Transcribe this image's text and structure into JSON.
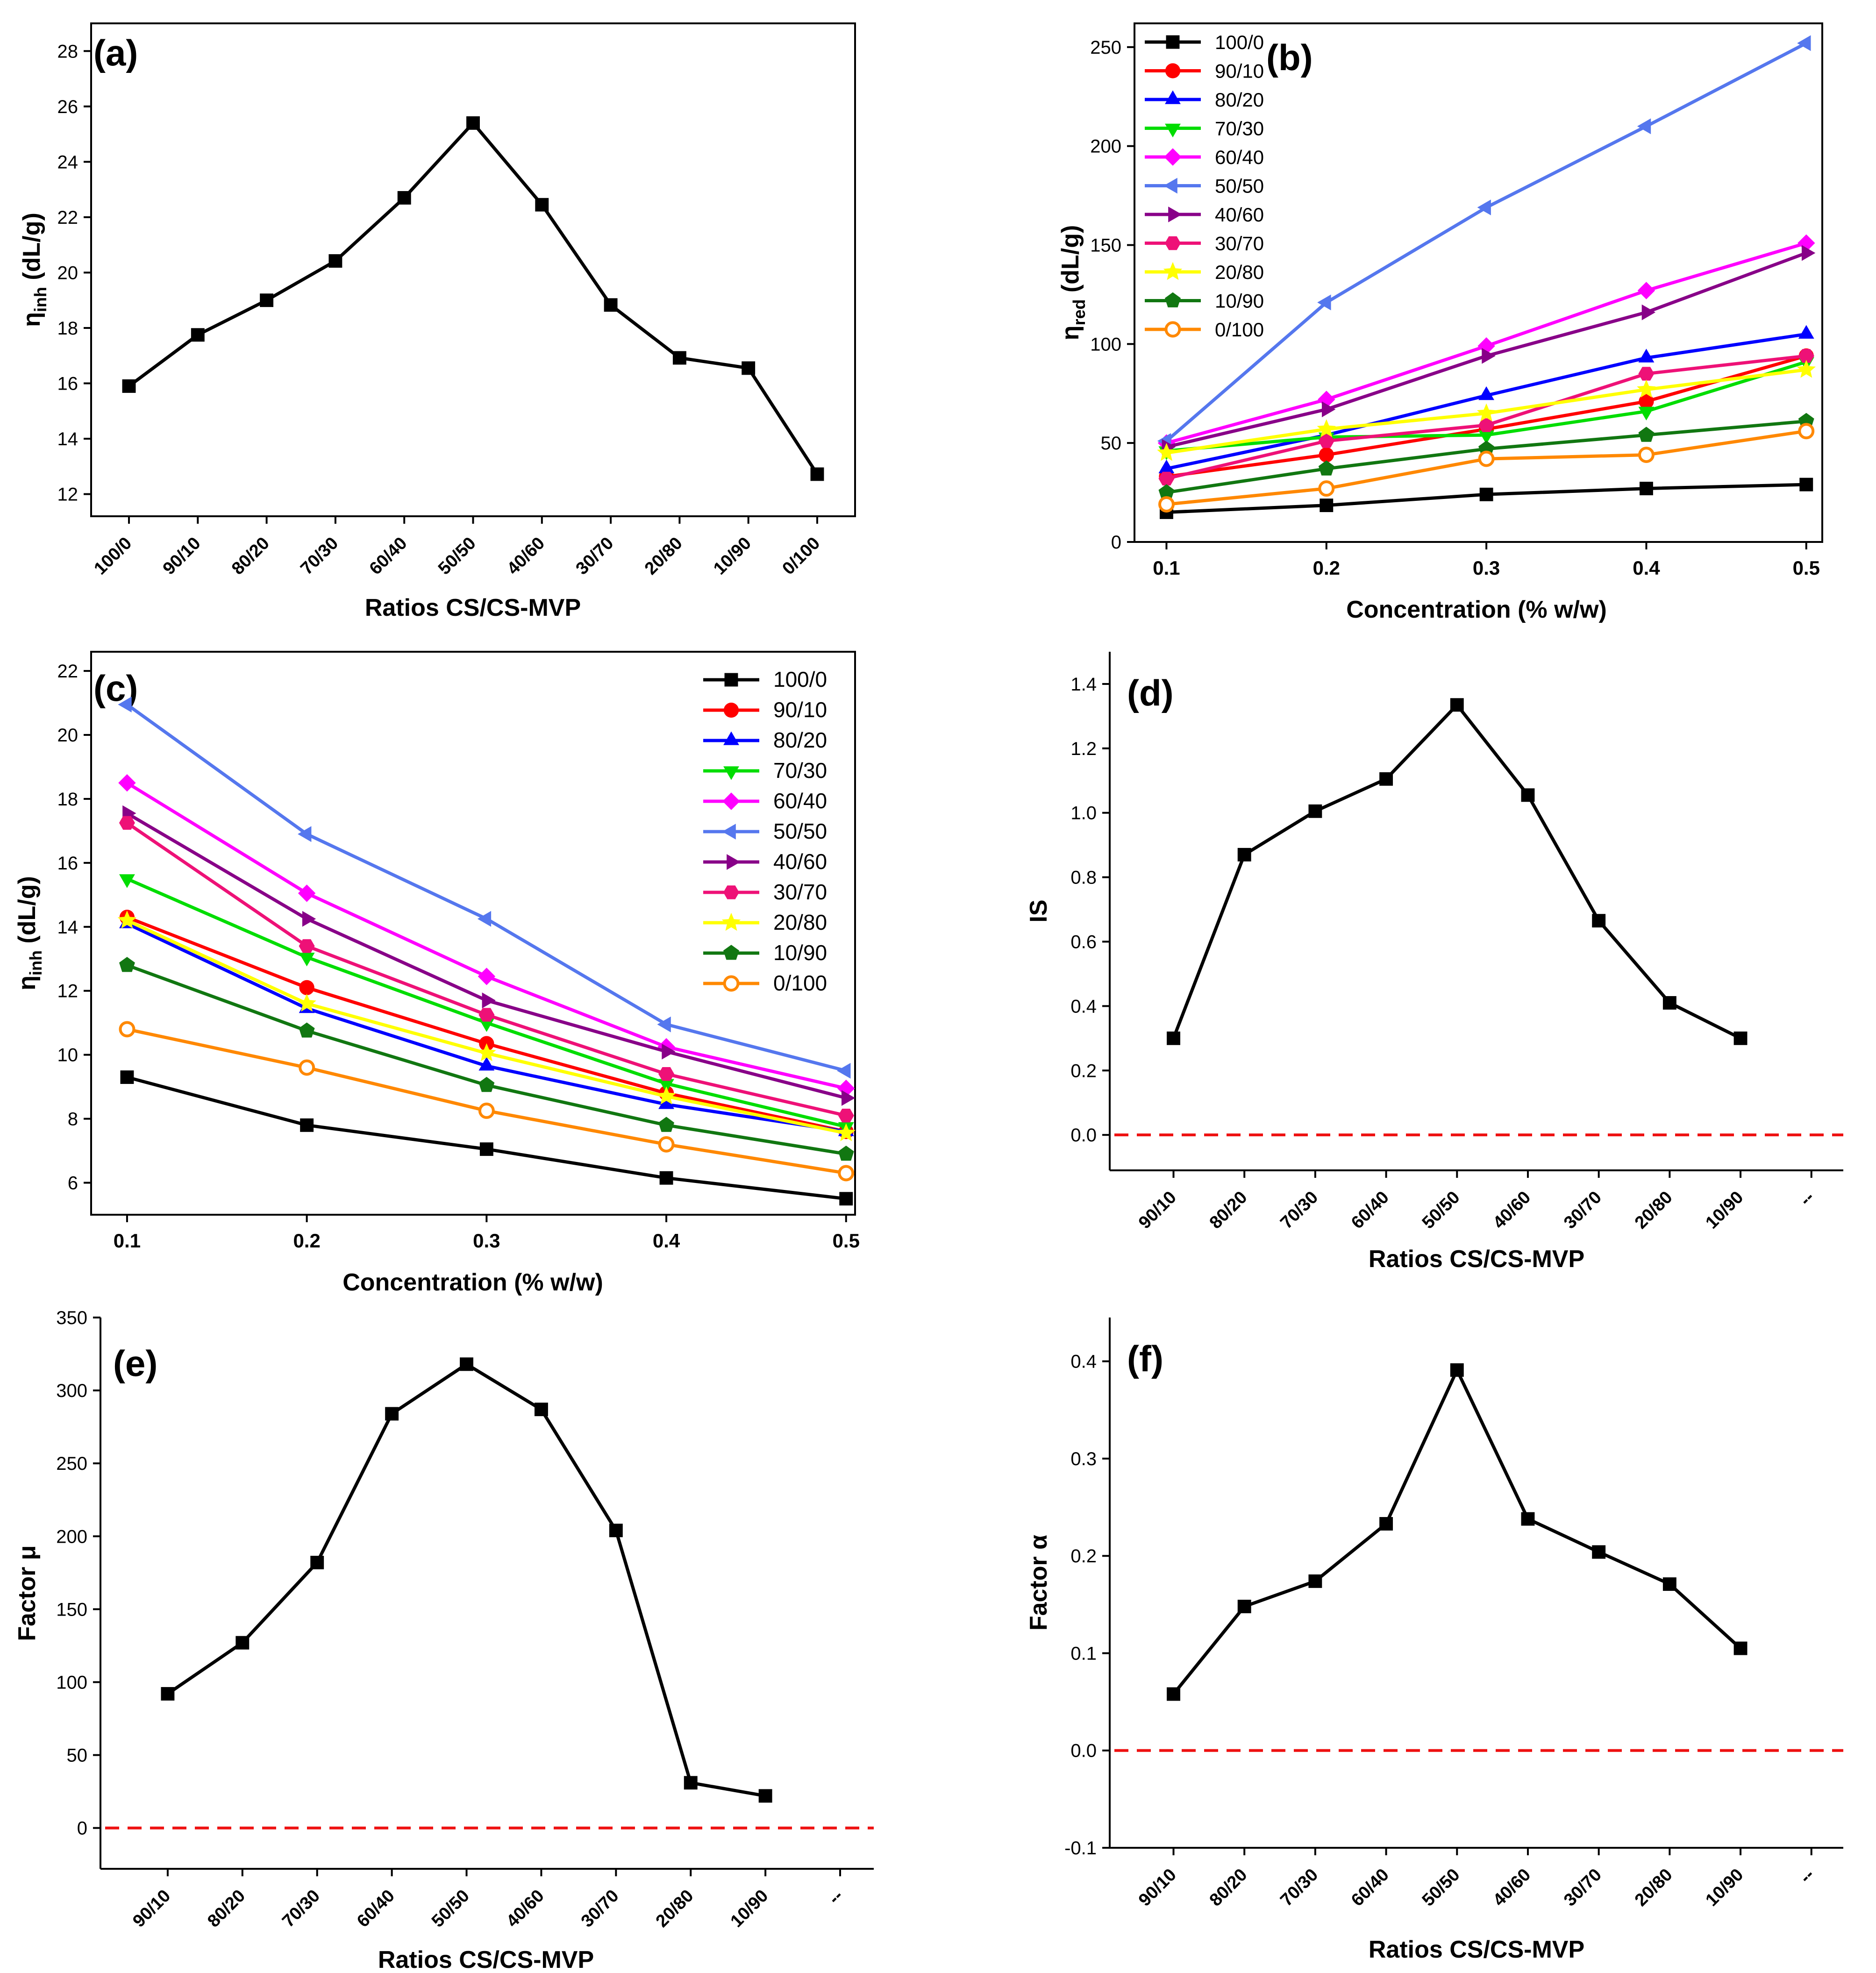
{
  "colors": {
    "axis": "#000000",
    "reference_line": "#ee1111",
    "series": {
      "100/0": "#000000",
      "90/10": "#ff0000",
      "80/20": "#0000ff",
      "70/30": "#00dd00",
      "60/40": "#ff00ff",
      "50/50": "#5577ee",
      "40/60": "#880088",
      "30/70": "#ee1177",
      "20/80": "#ffff00",
      "10/90": "#117711",
      "0/100": "#ff8800"
    }
  },
  "chart_data": [
    {
      "id": "a",
      "type": "line",
      "panel_label": "(a)",
      "title": "",
      "xlabel": "Ratios CS/CS-MVP",
      "ylabel_main": "η",
      "ylabel_sub": "inh",
      "ylabel_unit": " (dL/g)",
      "categories": [
        "100/0",
        "90/10",
        "80/20",
        "70/30",
        "60/40",
        "50/50",
        "40/60",
        "30/70",
        "20/80",
        "10/90",
        "0/100"
      ],
      "values": [
        15.9,
        17.75,
        19.0,
        20.42,
        22.7,
        25.4,
        22.45,
        18.83,
        16.92,
        16.55,
        12.72
      ],
      "ylim": [
        11.2,
        29.0
      ],
      "yticks": [
        12,
        14,
        16,
        18,
        20,
        22,
        24,
        26,
        28
      ],
      "grid": false,
      "legend": "none"
    },
    {
      "id": "b",
      "type": "line",
      "panel_label": "(b)",
      "title": "",
      "xlabel": "Concentration (% w/w)",
      "ylabel_main": "η",
      "ylabel_sub": "red",
      "ylabel_unit": " (dL/g)",
      "x": [
        0.1,
        0.2,
        0.3,
        0.4,
        0.5
      ],
      "xlim": [
        0.08,
        0.51
      ],
      "xticks": [
        0.1,
        0.2,
        0.3,
        0.4,
        0.5
      ],
      "ylim": [
        0,
        262
      ],
      "yticks": [
        0,
        50,
        100,
        150,
        200,
        250
      ],
      "legend": "top-left",
      "series": [
        {
          "name": "100/0",
          "marker": "square",
          "values": [
            15,
            18.5,
            24,
            27,
            29
          ]
        },
        {
          "name": "90/10",
          "marker": "circle",
          "values": [
            33,
            44,
            57,
            71,
            94
          ]
        },
        {
          "name": "80/20",
          "marker": "triangle-up",
          "values": [
            37,
            54,
            74,
            93,
            105
          ]
        },
        {
          "name": "70/30",
          "marker": "triangle-down",
          "values": [
            46,
            53,
            54,
            66,
            91
          ]
        },
        {
          "name": "60/40",
          "marker": "diamond",
          "values": [
            50,
            72,
            99,
            127,
            151
          ]
        },
        {
          "name": "50/50",
          "marker": "triangle-left",
          "values": [
            51,
            121,
            169,
            210,
            252
          ]
        },
        {
          "name": "40/60",
          "marker": "triangle-right",
          "values": [
            48,
            67,
            94,
            116,
            146
          ]
        },
        {
          "name": "30/70",
          "marker": "hexagon",
          "values": [
            32,
            51,
            59,
            85,
            94
          ]
        },
        {
          "name": "20/80",
          "marker": "star",
          "values": [
            45,
            57,
            65,
            77,
            87
          ]
        },
        {
          "name": "10/90",
          "marker": "pentagon",
          "values": [
            25,
            37,
            47,
            54,
            61
          ]
        },
        {
          "name": "0/100",
          "marker": "circle-open",
          "values": [
            19,
            27,
            42,
            44,
            56
          ]
        }
      ]
    },
    {
      "id": "c",
      "type": "line",
      "panel_label": "(c)",
      "title": "",
      "xlabel": "Concentration (% w/w)",
      "ylabel_main": "η",
      "ylabel_sub": "inh",
      "ylabel_unit": " (dL/g)",
      "x": [
        0.1,
        0.2,
        0.3,
        0.4,
        0.5
      ],
      "xlim": [
        0.08,
        0.505
      ],
      "xticks": [
        0.1,
        0.2,
        0.3,
        0.4,
        0.5
      ],
      "ylim": [
        5.0,
        22.6
      ],
      "yticks": [
        6,
        8,
        10,
        12,
        14,
        16,
        18,
        20,
        22
      ],
      "legend": "top-right",
      "series": [
        {
          "name": "100/0",
          "marker": "square",
          "values": [
            9.3,
            7.8,
            7.05,
            6.15,
            5.5
          ]
        },
        {
          "name": "90/10",
          "marker": "circle",
          "values": [
            14.3,
            12.1,
            10.35,
            8.8,
            7.6
          ]
        },
        {
          "name": "80/20",
          "marker": "triangle-up",
          "values": [
            14.1,
            11.45,
            9.65,
            8.45,
            7.6
          ]
        },
        {
          "name": "70/30",
          "marker": "triangle-down",
          "values": [
            15.5,
            13.05,
            11.0,
            9.1,
            7.75
          ]
        },
        {
          "name": "60/40",
          "marker": "diamond",
          "values": [
            18.5,
            15.05,
            12.45,
            10.25,
            8.95
          ]
        },
        {
          "name": "50/50",
          "marker": "triangle-left",
          "values": [
            20.95,
            16.9,
            14.25,
            10.95,
            9.5
          ]
        },
        {
          "name": "40/60",
          "marker": "triangle-right",
          "values": [
            17.55,
            14.25,
            11.7,
            10.1,
            8.65
          ]
        },
        {
          "name": "30/70",
          "marker": "hexagon",
          "values": [
            17.25,
            13.4,
            11.25,
            9.4,
            8.1
          ]
        },
        {
          "name": "20/80",
          "marker": "star",
          "values": [
            14.2,
            11.6,
            10.05,
            8.7,
            7.55
          ]
        },
        {
          "name": "10/90",
          "marker": "pentagon",
          "values": [
            12.8,
            10.75,
            9.05,
            7.8,
            6.9
          ]
        },
        {
          "name": "0/100",
          "marker": "circle-open",
          "values": [
            10.8,
            9.6,
            8.25,
            7.2,
            6.3
          ]
        }
      ]
    },
    {
      "id": "d",
      "type": "line",
      "panel_label": "(d)",
      "title": "",
      "xlabel": "Ratios CS/CS-MVP",
      "ylabel_main": "IS",
      "ylabel_sub": "",
      "ylabel_unit": "",
      "categories": [
        "90/10",
        "80/20",
        "70/30",
        "60/40",
        "50/50",
        "40/60",
        "30/70",
        "20/80",
        "10/90"
      ],
      "trailing_tick_label": "--",
      "values": [
        0.3,
        0.87,
        1.005,
        1.105,
        1.335,
        1.055,
        0.665,
        0.41,
        0.3
      ],
      "ylim": [
        -0.11,
        1.5
      ],
      "yticks": [
        0.0,
        0.2,
        0.4,
        0.6,
        0.8,
        1.0,
        1.2,
        1.4
      ],
      "tick_decimals": 1,
      "reference_y": 0,
      "grid": false,
      "legend": "none"
    },
    {
      "id": "e",
      "type": "line",
      "panel_label": "(e)",
      "title": "",
      "xlabel": "Ratios CS/CS-MVP",
      "ylabel_main": "Factor μ",
      "ylabel_sub": "",
      "ylabel_unit": "",
      "categories": [
        "90/10",
        "80/20",
        "70/30",
        "60/40",
        "50/50",
        "40/60",
        "30/70",
        "20/80",
        "10/90"
      ],
      "trailing_tick_label": "--",
      "values": [
        92,
        127,
        182,
        284,
        318,
        287,
        204,
        31,
        22
      ],
      "ylim": [
        -28,
        350
      ],
      "yticks": [
        0,
        50,
        100,
        150,
        200,
        250,
        300,
        350
      ],
      "tick_decimals": 0,
      "reference_y": 0,
      "grid": false,
      "legend": "none"
    },
    {
      "id": "f",
      "type": "line",
      "panel_label": "(f)",
      "title": "",
      "xlabel": "Ratios CS/CS-MVP",
      "ylabel_main": "Factor α",
      "ylabel_sub": "",
      "ylabel_unit": "",
      "categories": [
        "90/10",
        "80/20",
        "70/30",
        "60/40",
        "50/50",
        "40/60",
        "30/70",
        "20/80",
        "10/90"
      ],
      "trailing_tick_label": "--",
      "values": [
        0.058,
        0.148,
        0.174,
        0.233,
        0.391,
        0.238,
        0.204,
        0.171,
        0.105
      ],
      "ylim": [
        -0.1,
        0.445
      ],
      "yticks": [
        -0.1,
        0.0,
        0.1,
        0.2,
        0.3,
        0.4
      ],
      "tick_decimals": 1,
      "reference_y": 0,
      "grid": false,
      "legend": "none"
    }
  ]
}
